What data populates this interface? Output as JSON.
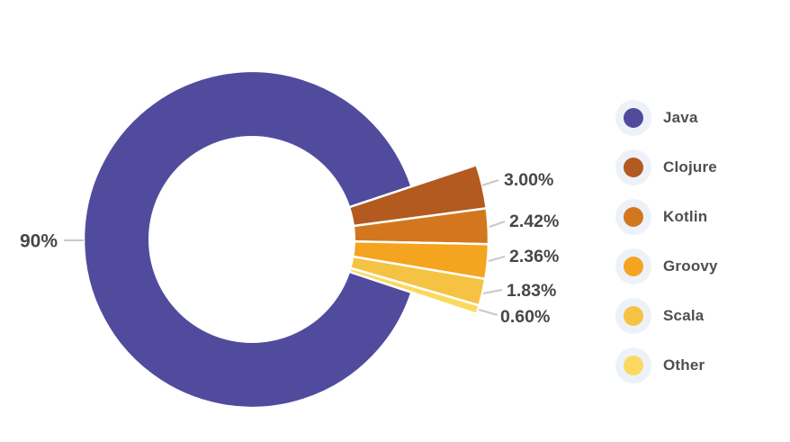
{
  "chart_data": {
    "type": "pie",
    "subtype": "donut with exploded minor slices and leader-line labels",
    "title": "",
    "slices": [
      {
        "name": "Java",
        "value": 90.0,
        "label": "90%",
        "color": "#514B9E"
      },
      {
        "name": "Clojure",
        "value": 3.0,
        "label": "3.00%",
        "color": "#B25A1F"
      },
      {
        "name": "Kotlin",
        "value": 2.42,
        "label": "2.42%",
        "color": "#D3771E"
      },
      {
        "name": "Groovy",
        "value": 2.36,
        "label": "2.36%",
        "color": "#F4A41E"
      },
      {
        "name": "Scala",
        "value": 1.83,
        "label": "1.83%",
        "color": "#F6C243"
      },
      {
        "name": "Other",
        "value": 0.6,
        "label": "0.60%",
        "color": "#FBD95E"
      }
    ],
    "legend": {
      "position": "right",
      "items": [
        "Java",
        "Clojure",
        "Kotlin",
        "Groovy",
        "Scala",
        "Other"
      ]
    },
    "colors": {
      "label_text": "#474747",
      "legend_text": "#4F4F4F",
      "leader_line": "#C9C9C9",
      "legend_halo": "#EDF2F9",
      "background": "#FFFFFF"
    }
  }
}
